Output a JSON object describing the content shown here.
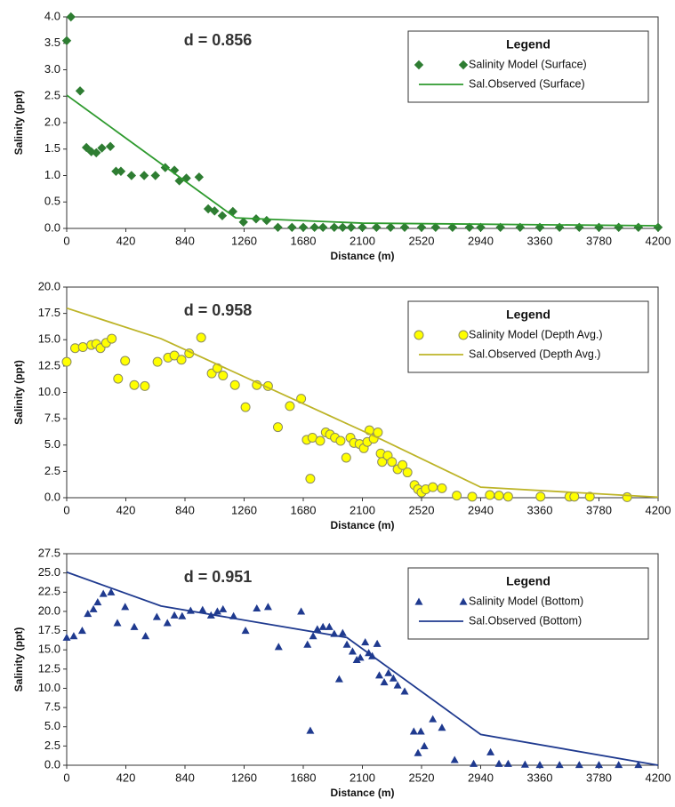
{
  "chart_data": [
    {
      "type": "scatter",
      "annotation": "d = 0.856",
      "xlabel": "Distance (m)",
      "ylabel": "Salinity (ppt)",
      "legend_title": "Legend",
      "xlim": [
        0,
        4200
      ],
      "ylim": [
        0,
        4
      ],
      "xticks": [
        0,
        420,
        840,
        1260,
        1680,
        2100,
        2520,
        2940,
        3360,
        3780,
        4200
      ],
      "yticks": [
        {
          "value": 0,
          "label": "0.0"
        },
        0.5,
        {
          "value": 1,
          "label": "1.0"
        },
        1.5,
        {
          "value": 2,
          "label": "2.0"
        },
        2.5,
        {
          "value": 3,
          "label": "3.0"
        },
        3.5,
        {
          "value": 4,
          "label": "4.0"
        }
      ],
      "series": [
        {
          "name": "Salinity Model (Surface)",
          "color": "#2e7d32",
          "marker": "diamond",
          "x": [
            0,
            30,
            95,
            140,
            175,
            210,
            250,
            310,
            350,
            385,
            460,
            550,
            630,
            700,
            765,
            800,
            850,
            940,
            1005,
            1050,
            1105,
            1180,
            1255,
            1345,
            1420,
            1500,
            1600,
            1680,
            1760,
            1820,
            1900,
            1960,
            2020,
            2100,
            2200,
            2300,
            2400,
            2520,
            2620,
            2740,
            2860,
            2940,
            3080,
            3220,
            3360,
            3500,
            3640,
            3780,
            3920,
            4060,
            4200
          ],
          "values": [
            3.55,
            4.0,
            2.6,
            1.53,
            1.45,
            1.43,
            1.52,
            1.55,
            1.08,
            1.08,
            1.0,
            1.0,
            1.0,
            1.15,
            1.1,
            0.9,
            0.95,
            0.97,
            0.37,
            0.33,
            0.24,
            0.32,
            0.12,
            0.18,
            0.15,
            0.02,
            0.02,
            0.02,
            0.02,
            0.02,
            0.02,
            0.02,
            0.02,
            0.02,
            0.02,
            0.02,
            0.02,
            0.02,
            0.02,
            0.02,
            0.02,
            0.02,
            0.02,
            0.02,
            0.02,
            0.02,
            0.02,
            0.02,
            0.02,
            0.02,
            0.02
          ]
        },
        {
          "name": "Sal.Observed (Surface)",
          "color": "#2e9a2e",
          "marker": "line",
          "x": [
            0,
            1200,
            2100,
            4200
          ],
          "values": [
            2.52,
            0.2,
            0.1,
            0.05
          ]
        }
      ]
    },
    {
      "type": "scatter",
      "annotation": "d = 0.958",
      "xlabel": "Distance (m)",
      "ylabel": "Salinity (ppt)",
      "legend_title": "Legend",
      "xlim": [
        0,
        4200
      ],
      "ylim": [
        0,
        20
      ],
      "xticks": [
        0,
        420,
        840,
        1260,
        1680,
        2100,
        2520,
        2940,
        3360,
        3780,
        4200
      ],
      "yticks": [
        {
          "value": 0,
          "label": "0.0"
        },
        2.5,
        {
          "value": 5,
          "label": "5.0"
        },
        7.5,
        {
          "value": 10,
          "label": "10.0"
        },
        12.5,
        {
          "value": 15,
          "label": "15.0"
        },
        17.5,
        {
          "value": 20,
          "label": "20.0"
        }
      ],
      "series": [
        {
          "name": "Salinity Model (Depth Avg.)",
          "color": "#ffff00",
          "marker": "circle",
          "x": [
            0,
            60,
            115,
            175,
            210,
            240,
            280,
            320,
            365,
            415,
            480,
            555,
            645,
            720,
            765,
            815,
            870,
            955,
            1030,
            1070,
            1110,
            1195,
            1270,
            1350,
            1430,
            1500,
            1585,
            1665,
            1705,
            1730,
            1745,
            1800,
            1840,
            1870,
            1905,
            1945,
            1985,
            2015,
            2040,
            2080,
            2110,
            2135,
            2150,
            2180,
            2210,
            2230,
            2240,
            2280,
            2310,
            2350,
            2385,
            2420,
            2470,
            2495,
            2520,
            2550,
            2600,
            2665,
            2770,
            2880,
            3005,
            3070,
            3135,
            3365,
            3570,
            3605,
            3715,
            3980
          ],
          "values": [
            12.9,
            14.2,
            14.3,
            14.5,
            14.6,
            14.2,
            14.7,
            15.1,
            11.3,
            13.0,
            10.7,
            10.6,
            12.9,
            13.3,
            13.5,
            13.1,
            13.7,
            15.2,
            11.8,
            12.3,
            11.6,
            10.7,
            8.6,
            10.7,
            10.6,
            6.7,
            8.7,
            9.4,
            5.5,
            1.8,
            5.7,
            5.4,
            6.2,
            6.0,
            5.7,
            5.4,
            3.8,
            5.7,
            5.2,
            5.1,
            4.7,
            5.3,
            6.4,
            5.6,
            6.2,
            4.2,
            3.4,
            4.0,
            3.4,
            2.7,
            3.1,
            2.4,
            1.2,
            0.8,
            0.5,
            0.8,
            1.0,
            0.9,
            0.2,
            0.1,
            0.25,
            0.2,
            0.1,
            0.1,
            0.1,
            0.1,
            0.1,
            0.05
          ]
        },
        {
          "name": "Sal.Observed (Depth Avg.)",
          "color": "#bdb428",
          "marker": "line",
          "x": [
            0,
            670,
            2240,
            2940,
            4200
          ],
          "values": [
            18.0,
            15.1,
            5.5,
            1.0,
            0.05
          ]
        }
      ]
    },
    {
      "type": "scatter",
      "annotation": "d = 0.951",
      "xlabel": "Distance (m)",
      "ylabel": "Salinity (ppt)",
      "legend_title": "Legend",
      "xlim": [
        0,
        4200
      ],
      "ylim": [
        0,
        27.5
      ],
      "xticks": [
        0,
        420,
        840,
        1260,
        1680,
        2100,
        2520,
        2940,
        3360,
        3780,
        4200
      ],
      "yticks": [
        {
          "value": 0,
          "label": "0.0"
        },
        2.5,
        {
          "value": 5,
          "label": "5.0"
        },
        7.5,
        {
          "value": 10,
          "label": "10.0"
        },
        12.5,
        {
          "value": 15,
          "label": "15.0"
        },
        17.5,
        {
          "value": 20,
          "label": "20.0"
        },
        22.5,
        {
          "value": 25,
          "label": "25.0"
        },
        27.5
      ],
      "series": [
        {
          "name": "Salinity Model (Bottom)",
          "color": "#1f3a8f",
          "marker": "triangle",
          "x": [
            0,
            50,
            110,
            150,
            190,
            220,
            260,
            315,
            360,
            415,
            480,
            560,
            640,
            715,
            765,
            820,
            880,
            965,
            1025,
            1070,
            1110,
            1185,
            1270,
            1350,
            1430,
            1505,
            1665,
            1710,
            1730,
            1750,
            1780,
            1820,
            1865,
            1900,
            1935,
            1960,
            1990,
            2030,
            2060,
            2085,
            2120,
            2145,
            2170,
            2205,
            2220,
            2255,
            2285,
            2320,
            2350,
            2400,
            2465,
            2495,
            2515,
            2540,
            2600,
            2665,
            2755,
            2890,
            3010,
            3070,
            3135,
            3255,
            3360,
            3500,
            3640,
            3780,
            3920,
            4060
          ],
          "values": [
            16.6,
            16.8,
            17.5,
            19.7,
            20.3,
            21.2,
            22.3,
            22.5,
            18.5,
            20.6,
            18.0,
            16.8,
            19.3,
            18.5,
            19.5,
            19.4,
            20.1,
            20.2,
            19.5,
            20.0,
            20.3,
            19.4,
            17.5,
            20.4,
            20.6,
            15.4,
            20.0,
            15.7,
            4.5,
            16.8,
            17.7,
            18.0,
            18.0,
            17.1,
            11.2,
            17.2,
            15.7,
            14.8,
            13.7,
            14.0,
            16.0,
            14.6,
            14.2,
            15.8,
            11.7,
            10.8,
            12.0,
            11.3,
            10.4,
            9.6,
            4.4,
            1.6,
            4.4,
            2.5,
            6.0,
            4.9,
            0.7,
            0.2,
            1.7,
            0.2,
            0.2,
            0.1,
            0.05,
            0.05,
            0.05,
            0.05,
            0.05,
            0.05
          ]
        },
        {
          "name": "Sal.Observed (Bottom)",
          "color": "#1f3a8f",
          "marker": "line",
          "x": [
            0,
            670,
            1990,
            2940,
            4200
          ],
          "values": [
            25.1,
            20.7,
            16.6,
            4.0,
            0.0
          ]
        }
      ]
    }
  ]
}
